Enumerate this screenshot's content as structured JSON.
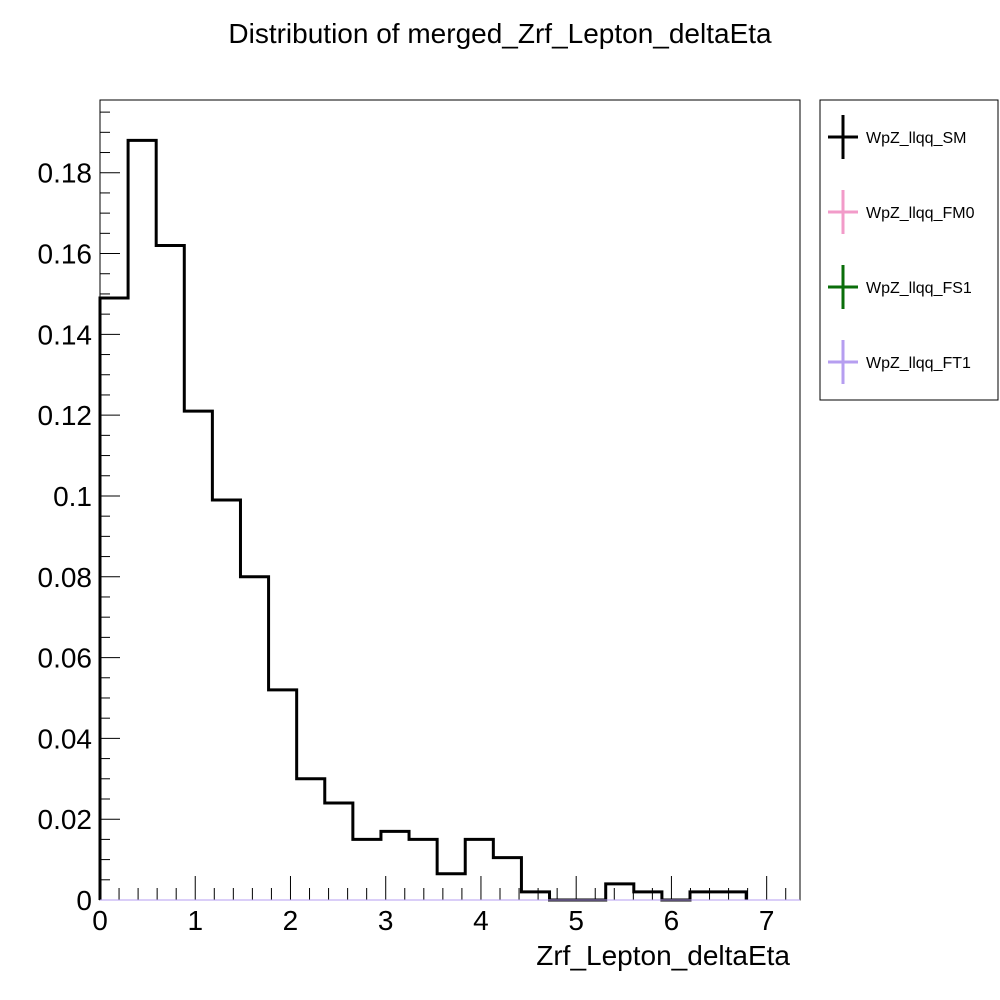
{
  "chart_data": {
    "type": "bar",
    "title": "Distribution of merged_Zrf_Lepton_deltaEta",
    "xlabel": "Zrf_Lepton_deltaEta",
    "ylabel": "",
    "xlim": [
      0,
      7.35
    ],
    "ylim": [
      0,
      0.198
    ],
    "grid": false,
    "legend_position": "right",
    "bin_edges": [
      0,
      0.295,
      0.59,
      0.885,
      1.18,
      1.475,
      1.77,
      2.065,
      2.36,
      2.655,
      2.95,
      3.245,
      3.54,
      3.835,
      4.13,
      4.425,
      4.72,
      5.015,
      5.31,
      5.605,
      5.9,
      6.195,
      6.49,
      6.785
    ],
    "x_ticks": [
      "0",
      "1",
      "2",
      "3",
      "4",
      "5",
      "6",
      "7"
    ],
    "y_ticks": [
      "0",
      "0.02",
      "0.04",
      "0.06",
      "0.08",
      "0.1",
      "0.12",
      "0.14",
      "0.16",
      "0.18"
    ],
    "series": [
      {
        "name": "WpZ_llqq_SM",
        "color": "#000000",
        "values": [
          0.149,
          0.188,
          0.162,
          0.121,
          0.099,
          0.08,
          0.052,
          0.03,
          0.024,
          0.015,
          0.017,
          0.015,
          0.0065,
          0.015,
          0.0105,
          0.002,
          0.0,
          0.0,
          0.004,
          0.002,
          0.0,
          0.002,
          0.002
        ]
      },
      {
        "name": "WpZ_llqq_FM0",
        "color": "#f29bc9",
        "values": []
      },
      {
        "name": "WpZ_llqq_FS1",
        "color": "#0a6e0a",
        "values": []
      },
      {
        "name": "WpZ_llqq_FT1",
        "color": "#b69ef0",
        "values": []
      }
    ]
  }
}
